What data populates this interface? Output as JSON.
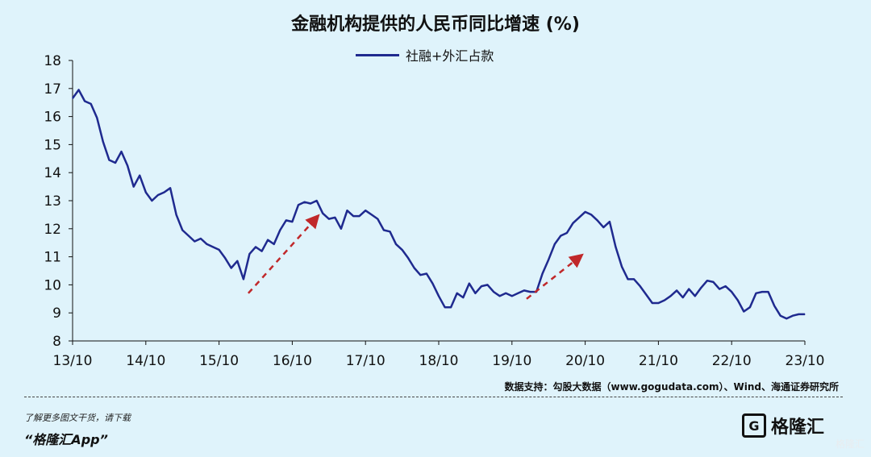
{
  "chart_data": {
    "type": "line",
    "title": "金融机构提供的人民币同比增速 (%)",
    "xlabel": "",
    "ylabel": "",
    "ylim": [
      8,
      18
    ],
    "yticks": [
      "8",
      "9",
      "10",
      "11",
      "12",
      "13",
      "14",
      "15",
      "16",
      "17",
      "18"
    ],
    "xticks": [
      "13/10",
      "14/10",
      "15/10",
      "16/10",
      "17/10",
      "18/10",
      "19/10",
      "20/10",
      "21/10",
      "22/10",
      "23/10"
    ],
    "legend_position": "top-center",
    "series": [
      {
        "name": "社融+外汇占款",
        "color": "#1f2a8f",
        "x": [
          0,
          0.0833,
          0.1667,
          0.25,
          0.3333,
          0.4167,
          0.5,
          0.5833,
          0.6667,
          0.75,
          0.8333,
          0.9167,
          1.0,
          1.0833,
          1.1667,
          1.25,
          1.3333,
          1.4167,
          1.5,
          1.5833,
          1.6667,
          1.75,
          1.8333,
          1.9167,
          2.0,
          2.0833,
          2.1667,
          2.25,
          2.3333,
          2.4167,
          2.5,
          2.5833,
          2.6667,
          2.75,
          2.8333,
          2.9167,
          3.0,
          3.0833,
          3.1667,
          3.25,
          3.3333,
          3.4167,
          3.5,
          3.5833,
          3.6667,
          3.75,
          3.8333,
          3.9167,
          4.0,
          4.0833,
          4.1667,
          4.25,
          4.3333,
          4.4167,
          4.5,
          4.5833,
          4.6667,
          4.75,
          4.8333,
          4.9167,
          5.0,
          5.0833,
          5.1667,
          5.25,
          5.3333,
          5.4167,
          5.5,
          5.5833,
          5.6667,
          5.75,
          5.8333,
          5.9167,
          6.0,
          6.0833,
          6.1667,
          6.25,
          6.3333,
          6.4167,
          6.5,
          6.5833,
          6.6667,
          6.75,
          6.8333,
          6.9167,
          7.0,
          7.0833,
          7.1667,
          7.25,
          7.3333,
          7.4167,
          7.5,
          7.5833,
          7.6667,
          7.75,
          7.8333,
          7.9167,
          8.0,
          8.0833,
          8.1667,
          8.25,
          8.3333,
          8.4167,
          8.5,
          8.5833,
          8.6667,
          8.75,
          8.8333,
          8.9167,
          9.0,
          9.0833,
          9.1667,
          9.25,
          9.3333,
          9.4167,
          9.5,
          9.5833,
          9.6667,
          9.75,
          9.8333,
          9.9167,
          10.0
        ],
        "values": [
          16.65,
          16.95,
          16.55,
          16.45,
          15.95,
          15.1,
          14.45,
          14.35,
          14.75,
          14.25,
          13.5,
          13.9,
          13.3,
          13.0,
          13.2,
          13.3,
          13.45,
          12.5,
          11.95,
          11.75,
          11.55,
          11.65,
          11.45,
          11.35,
          11.25,
          10.95,
          10.6,
          10.85,
          10.2,
          11.1,
          11.35,
          11.2,
          11.6,
          11.45,
          11.95,
          12.3,
          12.25,
          12.85,
          12.95,
          12.9,
          13.0,
          12.55,
          12.35,
          12.4,
          12.0,
          12.65,
          12.45,
          12.45,
          12.65,
          12.5,
          12.35,
          11.95,
          11.9,
          11.45,
          11.25,
          10.95,
          10.6,
          10.35,
          10.4,
          10.05,
          9.6,
          9.2,
          9.2,
          9.7,
          9.55,
          10.05,
          9.7,
          9.95,
          10.0,
          9.75,
          9.6,
          9.7,
          9.6,
          9.7,
          9.8,
          9.75,
          9.75,
          10.4,
          10.9,
          11.45,
          11.75,
          11.85,
          12.2,
          12.4,
          12.6,
          12.5,
          12.3,
          12.05,
          12.25,
          11.35,
          10.65,
          10.2,
          10.2,
          9.95,
          9.65,
          9.35,
          9.35,
          9.45,
          9.6,
          9.8,
          9.55,
          9.85,
          9.6,
          9.9,
          10.15,
          10.1,
          9.85,
          9.95,
          9.75,
          9.45,
          9.05,
          9.2,
          9.7,
          9.75,
          9.75,
          9.25,
          8.9,
          8.8,
          8.9,
          8.95,
          8.95
        ]
      }
    ],
    "annotations": [
      {
        "type": "arrow",
        "label": "",
        "x1": 2.4,
        "y1": 9.7,
        "x2": 3.35,
        "y2": 12.45,
        "color": "#c0282a"
      },
      {
        "type": "arrow",
        "label": "",
        "x1": 6.2,
        "y1": 9.5,
        "x2": 6.95,
        "y2": 11.05,
        "color": "#c0282a"
      }
    ]
  },
  "source": "数据支持：勾股大数据（www.gogudata.com）、Wind、海通证券研究所",
  "footer": {
    "note": "了解更多图文干货，请下载",
    "app": "“格隆汇App”"
  },
  "brand": {
    "mark": "G",
    "name": "格隆汇",
    "watermark": "格隆汇"
  }
}
